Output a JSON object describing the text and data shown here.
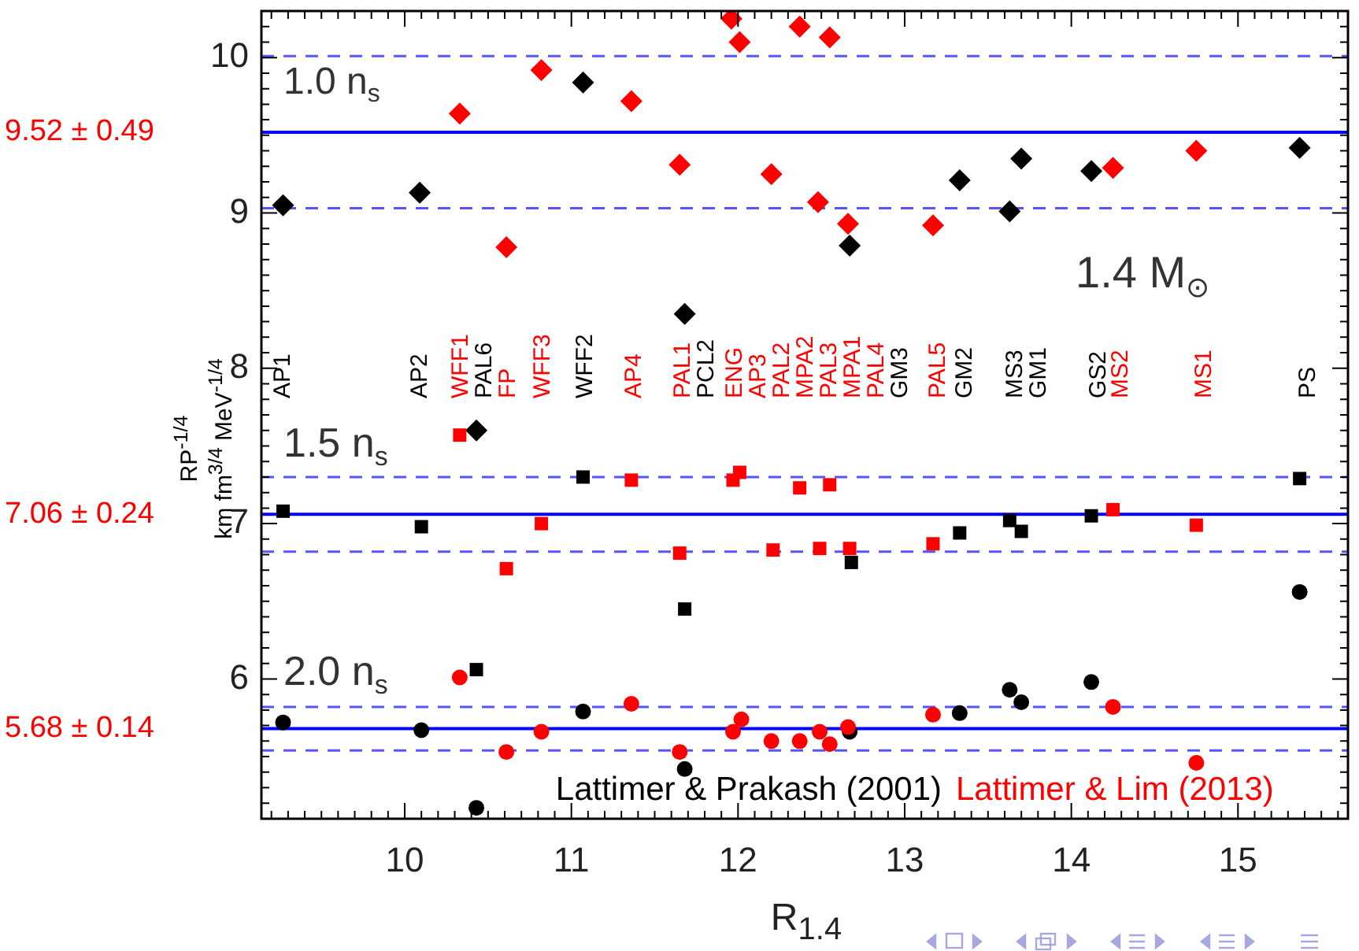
{
  "chart_data": {
    "type": "scatter",
    "xlabel": "R$_{1.4}$",
    "ylabel": "RP$^{-1/4}$\nkm fm$^{3/4}$ MeV$^{-1/4}$",
    "xlim": [
      9.14,
      15.66
    ],
    "ylim": [
      5.1,
      10.3
    ],
    "xticks": [
      {
        "value": 9.2,
        "label": null
      },
      {
        "value": 9.3,
        "label": null
      },
      {
        "value": 9.4,
        "label": null
      },
      {
        "value": 9.5,
        "label": null
      },
      {
        "value": 9.6,
        "label": null
      },
      {
        "value": 9.7,
        "label": null
      },
      {
        "value": 9.8,
        "label": null
      },
      {
        "value": 9.9,
        "label": null
      },
      10,
      {
        "value": 10.1,
        "label": null
      },
      {
        "value": 10.2,
        "label": null
      },
      {
        "value": 10.3,
        "label": null
      },
      {
        "value": 10.4,
        "label": null
      },
      {
        "value": 10.5,
        "label": null
      },
      {
        "value": 10.6,
        "label": null
      },
      {
        "value": 10.7,
        "label": null
      },
      {
        "value": 10.8,
        "label": null
      },
      {
        "value": 10.9,
        "label": null
      },
      11,
      {
        "value": 11.1,
        "label": null
      },
      {
        "value": 11.2,
        "label": null
      },
      {
        "value": 11.3,
        "label": null
      },
      {
        "value": 11.4,
        "label": null
      },
      {
        "value": 11.5,
        "label": null
      },
      {
        "value": 11.6,
        "label": null
      },
      {
        "value": 11.7,
        "label": null
      },
      {
        "value": 11.8,
        "label": null
      },
      {
        "value": 11.9,
        "label": null
      },
      12,
      {
        "value": 12.1,
        "label": null
      },
      {
        "value": 12.2,
        "label": null
      },
      {
        "value": 12.3,
        "label": null
      },
      {
        "value": 12.4,
        "label": null
      },
      {
        "value": 12.5,
        "label": null
      },
      {
        "value": 12.6,
        "label": null
      },
      {
        "value": 12.7,
        "label": null
      },
      {
        "value": 12.8,
        "label": null
      },
      {
        "value": 12.9,
        "label": null
      },
      13,
      {
        "value": 13.1,
        "label": null
      },
      {
        "value": 13.2,
        "label": null
      },
      {
        "value": 13.3,
        "label": null
      },
      {
        "value": 13.4,
        "label": null
      },
      {
        "value": 13.5,
        "label": null
      },
      {
        "value": 13.6,
        "label": null
      },
      {
        "value": 13.7,
        "label": null
      },
      {
        "value": 13.8,
        "label": null
      },
      {
        "value": 13.9,
        "label": null
      },
      14,
      {
        "value": 14.1,
        "label": null
      },
      {
        "value": 14.2,
        "label": null
      },
      {
        "value": 14.3,
        "label": null
      },
      {
        "value": 14.4,
        "label": null
      },
      {
        "value": 14.5,
        "label": null
      },
      {
        "value": 14.6,
        "label": null
      },
      {
        "value": 14.7,
        "label": null
      },
      {
        "value": 14.8,
        "label": null
      },
      {
        "value": 14.9,
        "label": null
      },
      15,
      {
        "value": 15.1,
        "label": null
      },
      {
        "value": 15.2,
        "label": null
      },
      {
        "value": 15.3,
        "label": null
      },
      {
        "value": 15.4,
        "label": null
      },
      {
        "value": 15.5,
        "label": null
      },
      {
        "value": 15.6,
        "label": null
      }
    ],
    "yticks": [
      {
        "value": 5.2,
        "label": null
      },
      {
        "value": 5.3,
        "label": null
      },
      {
        "value": 5.4,
        "label": null
      },
      {
        "value": 5.5,
        "label": null
      },
      {
        "value": 5.6,
        "label": null
      },
      {
        "value": 5.7,
        "label": null
      },
      {
        "value": 5.8,
        "label": null
      },
      {
        "value": 5.9,
        "label": null
      },
      6,
      {
        "value": 6.1,
        "label": null
      },
      {
        "value": 6.2,
        "label": null
      },
      {
        "value": 6.3,
        "label": null
      },
      {
        "value": 6.4,
        "label": null
      },
      {
        "value": 6.5,
        "label": null
      },
      {
        "value": 6.6,
        "label": null
      },
      {
        "value": 6.7,
        "label": null
      },
      {
        "value": 6.8,
        "label": null
      },
      {
        "value": 6.9,
        "label": null
      },
      7,
      {
        "value": 7.1,
        "label": null
      },
      {
        "value": 7.2,
        "label": null
      },
      {
        "value": 7.3,
        "label": null
      },
      {
        "value": 7.4,
        "label": null
      },
      {
        "value": 7.5,
        "label": null
      },
      {
        "value": 7.6,
        "label": null
      },
      {
        "value": 7.7,
        "label": null
      },
      {
        "value": 7.8,
        "label": null
      },
      {
        "value": 7.9,
        "label": null
      },
      8,
      {
        "value": 8.1,
        "label": null
      },
      {
        "value": 8.2,
        "label": null
      },
      {
        "value": 8.3,
        "label": null
      },
      {
        "value": 8.4,
        "label": null
      },
      {
        "value": 8.5,
        "label": null
      },
      {
        "value": 8.6,
        "label": null
      },
      {
        "value": 8.7,
        "label": null
      },
      {
        "value": 8.8,
        "label": null
      },
      {
        "value": 8.9,
        "label": null
      },
      9,
      {
        "value": 9.1,
        "label": null
      },
      {
        "value": 9.2,
        "label": null
      },
      {
        "value": 9.3,
        "label": null
      },
      {
        "value": 9.4,
        "label": null
      },
      {
        "value": 9.5,
        "label": null
      },
      {
        "value": 9.6,
        "label": null
      },
      {
        "value": 9.7,
        "label": null
      },
      {
        "value": 9.8,
        "label": null
      },
      {
        "value": 9.9,
        "label": null
      },
      10,
      {
        "value": 10.1,
        "label": null
      },
      {
        "value": 10.2,
        "label": null
      }
    ],
    "grid": false,
    "legend": false,
    "series": [
      {
        "color": "#000000",
        "marker": "diamond",
        "x": [
          9.27,
          10.09,
          11.07,
          10.43,
          11.68,
          12.67,
          13.33,
          13.63,
          13.7,
          14.12,
          15.37
        ],
        "values": [
          9.05,
          9.13,
          9.84,
          7.6,
          8.35,
          8.79,
          9.21,
          9.01,
          9.35,
          9.27,
          9.42
        ]
      },
      {
        "color": "#ff0000",
        "marker": "diamond",
        "x": [
          10.33,
          10.61,
          10.82,
          11.36,
          11.65,
          11.96,
          12.01,
          12.2,
          12.37,
          12.48,
          12.55,
          12.66,
          13.17,
          14.25,
          14.75
        ],
        "values": [
          9.64,
          8.78,
          9.92,
          9.72,
          9.31,
          10.25,
          10.1,
          9.25,
          10.2,
          9.07,
          10.13,
          8.93,
          8.92,
          9.29,
          9.4
        ]
      },
      {
        "color": "#000000",
        "marker": "square",
        "x": [
          9.27,
          10.1,
          11.07,
          11.68,
          12.68,
          13.33,
          13.63,
          13.7,
          14.12,
          15.37,
          10.43
        ],
        "values": [
          7.08,
          6.98,
          7.3,
          6.45,
          6.75,
          6.94,
          7.02,
          6.95,
          7.05,
          7.29,
          6.06
        ]
      },
      {
        "color": "#ff0000",
        "marker": "square",
        "x": [
          10.33,
          10.61,
          10.82,
          11.36,
          11.65,
          11.97,
          12.01,
          12.21,
          12.37,
          12.49,
          12.55,
          12.67,
          13.17,
          14.25,
          14.75
        ],
        "values": [
          7.57,
          6.71,
          7.0,
          7.28,
          6.81,
          7.28,
          7.33,
          6.83,
          7.23,
          6.84,
          7.25,
          6.84,
          6.87,
          7.09,
          6.99
        ]
      },
      {
        "color": "#000000",
        "marker": "circle",
        "x": [
          9.27,
          10.1,
          10.43,
          11.07,
          11.68,
          12.67,
          13.33,
          13.63,
          13.7,
          14.12,
          15.37
        ],
        "values": [
          5.72,
          5.67,
          5.17,
          5.79,
          5.42,
          5.66,
          5.78,
          5.93,
          5.85,
          5.98,
          6.56
        ]
      },
      {
        "color": "#ff0000",
        "marker": "circle",
        "x": [
          10.33,
          10.61,
          10.82,
          11.36,
          11.65,
          11.97,
          12.02,
          12.2,
          12.37,
          12.49,
          12.55,
          12.66,
          13.17,
          14.25,
          14.75
        ],
        "values": [
          6.01,
          5.53,
          5.66,
          5.84,
          5.53,
          5.66,
          5.74,
          5.6,
          5.6,
          5.66,
          5.58,
          5.69,
          5.77,
          5.82,
          5.46
        ]
      }
    ],
    "ref_lines": [
      {
        "axis": "y",
        "value": 9.52,
        "color": "#0000ff",
        "line_style": "solid"
      },
      {
        "axis": "y",
        "value": 10.01,
        "color": "#5555ff",
        "line_style": "dashed"
      },
      {
        "axis": "y",
        "value": 9.03,
        "color": "#5555ff",
        "line_style": "dashed"
      },
      {
        "axis": "y",
        "value": 7.06,
        "color": "#0000ff",
        "line_style": "solid"
      },
      {
        "axis": "y",
        "value": 7.3,
        "color": "#5555ff",
        "line_style": "dashed"
      },
      {
        "axis": "y",
        "value": 6.82,
        "color": "#5555ff",
        "line_style": "dashed"
      },
      {
        "axis": "y",
        "value": 5.68,
        "color": "#0000ff",
        "line_style": "solid"
      },
      {
        "axis": "y",
        "value": 5.82,
        "color": "#5555ff",
        "line_style": "dashed"
      },
      {
        "axis": "y",
        "value": 5.54,
        "color": "#5555ff",
        "line_style": "dashed"
      }
    ],
    "annotations": [
      "1.0 n$_{s}$",
      "1.5 n$_{s}$",
      "2.0 n$_{s}$",
      "1.4 M$_{⊙}$",
      "Lattimer & Prakash (2001)",
      "Lattimer & Lim (2013)",
      "9.52 ± 0.49",
      "7.06 ± 0.24",
      "5.68 ± 0.14",
      "AP1",
      "AP2",
      "WFF1",
      "PAL6",
      "FP",
      "WFF3",
      "WFF2",
      "AP4",
      "PAL1",
      "PCL2",
      "ENG",
      "AP3",
      "PAL2",
      "MPA2",
      "PAL3",
      "MPA1",
      "PAL4",
      "GM3",
      "PAL5",
      "GM2",
      "MS3",
      "GM1",
      "GS2",
      "MS2",
      "MS1",
      "PS"
    ]
  }
}
